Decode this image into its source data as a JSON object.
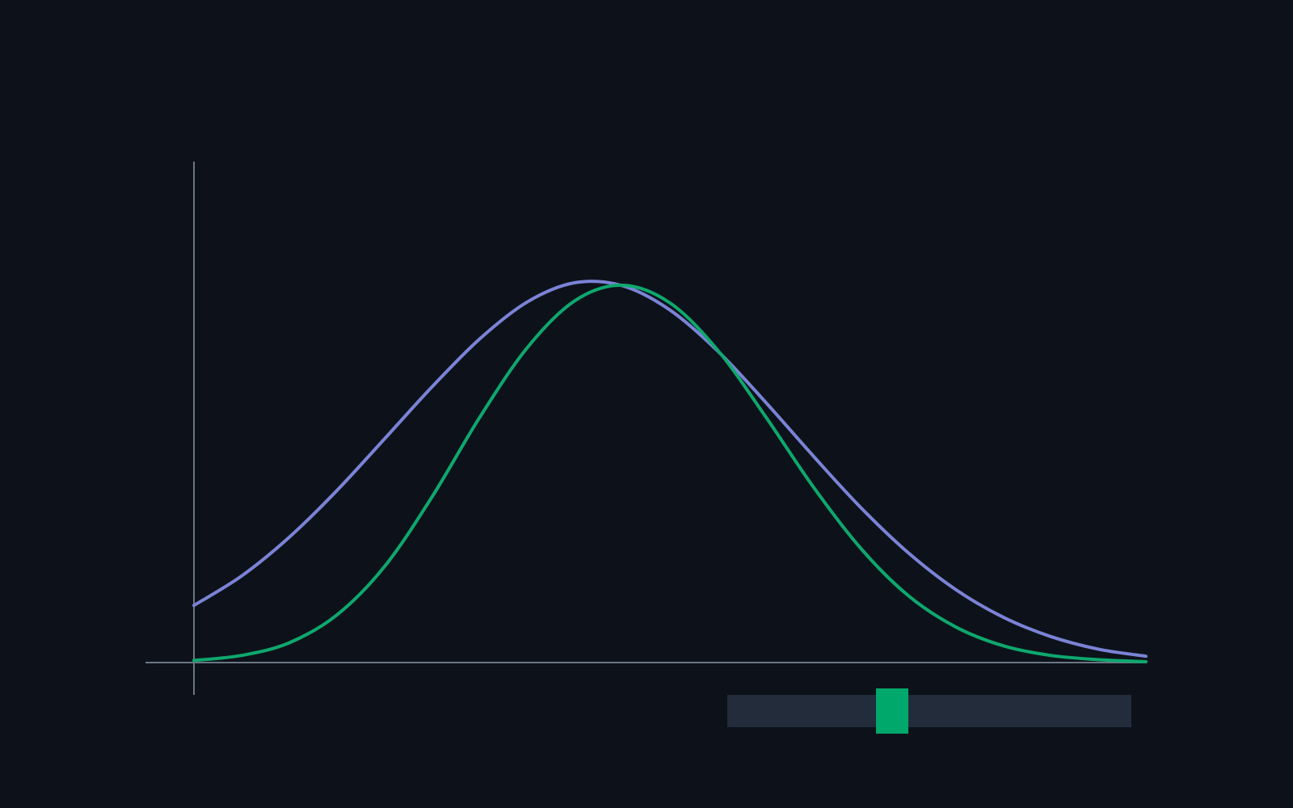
{
  "chart_data": {
    "type": "line",
    "title": "",
    "xlabel": "",
    "ylabel": "",
    "grid": false,
    "legend": "none",
    "xlim": [
      0,
      1
    ],
    "ylim": [
      0,
      1
    ],
    "series": [
      {
        "color": "#7b83d6",
        "x": [
          0.0,
          0.05,
          0.1,
          0.15,
          0.2,
          0.25,
          0.3,
          0.35,
          0.4,
          0.45,
          0.5,
          0.55,
          0.6,
          0.65,
          0.7,
          0.75,
          0.8,
          0.85,
          0.9,
          0.95,
          1.0
        ],
        "y": [
          0.136,
          0.206,
          0.298,
          0.409,
          0.532,
          0.656,
          0.77,
          0.858,
          0.904,
          0.897,
          0.839,
          0.742,
          0.621,
          0.493,
          0.37,
          0.262,
          0.174,
          0.108,
          0.062,
          0.032,
          0.015
        ]
      },
      {
        "color": "#0ea86e",
        "x": [
          0.0,
          0.05,
          0.1,
          0.15,
          0.2,
          0.25,
          0.3,
          0.35,
          0.4,
          0.45,
          0.5,
          0.55,
          0.6,
          0.65,
          0.7,
          0.75,
          0.8,
          0.85,
          0.9,
          0.95,
          1.0
        ],
        "y": [
          0.005,
          0.017,
          0.047,
          0.113,
          0.228,
          0.394,
          0.583,
          0.749,
          0.861,
          0.898,
          0.856,
          0.744,
          0.587,
          0.42,
          0.273,
          0.16,
          0.085,
          0.04,
          0.017,
          0.007,
          0.002
        ]
      }
    ]
  },
  "slider": {
    "value": 0.4,
    "track_color": "#232c3a",
    "thumb_color": "#00a86b"
  },
  "colors": {
    "background": "#0d121a",
    "axis": "#6b7785"
  }
}
